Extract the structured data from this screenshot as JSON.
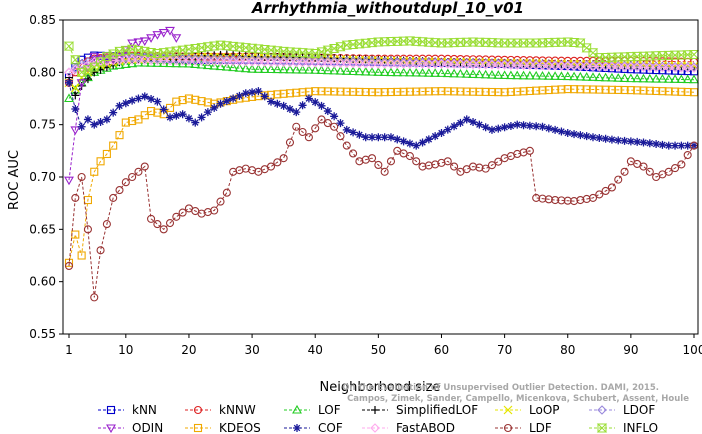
{
  "chart_data": {
    "type": "line",
    "title": "Arrhythmia_withoutdupl_10_v01",
    "xlabel": "Neighborhood size",
    "ylabel": "ROC AUC",
    "xlim": [
      1,
      100
    ],
    "ylim": [
      0.55,
      0.85
    ],
    "x_ticks": [
      1,
      10,
      20,
      30,
      40,
      50,
      60,
      70,
      80,
      90,
      100
    ],
    "y_ticks": [
      0.55,
      0.6,
      0.65,
      0.7,
      0.75,
      0.8,
      0.85
    ],
    "y_tick_labels": [
      "0.55",
      "0.60",
      "0.65",
      "0.70",
      "0.75",
      "0.80",
      "0.85"
    ],
    "grid": false,
    "legend_position": "bottom",
    "watermark": [
      "Campos, Zimek, Sander, Campello, Micenkova, Schubert, Assent, Houle",
      "On the Evaluation of Unsupervised Outlier Detection. DAMI, 2015."
    ],
    "series": [
      {
        "name": "kNN",
        "color": "#0000cc",
        "marker": "square",
        "x_range": [
          1,
          100
        ],
        "keypoints": [
          [
            1,
            0.795
          ],
          [
            2,
            0.805
          ],
          [
            3,
            0.812
          ],
          [
            5,
            0.816
          ],
          [
            10,
            0.815
          ],
          [
            20,
            0.812
          ],
          [
            30,
            0.812
          ],
          [
            40,
            0.811
          ],
          [
            50,
            0.81
          ],
          [
            60,
            0.809
          ],
          [
            70,
            0.808
          ],
          [
            80,
            0.806
          ],
          [
            90,
            0.803
          ],
          [
            100,
            0.801
          ]
        ]
      },
      {
        "name": "kNNW",
        "color": "#dd2222",
        "marker": "circle",
        "x_range": [
          1,
          100
        ],
        "keypoints": [
          [
            1,
            0.79
          ],
          [
            2,
            0.8
          ],
          [
            3,
            0.808
          ],
          [
            5,
            0.813
          ],
          [
            10,
            0.816
          ],
          [
            20,
            0.815
          ],
          [
            30,
            0.815
          ],
          [
            40,
            0.814
          ],
          [
            50,
            0.813
          ],
          [
            60,
            0.813
          ],
          [
            70,
            0.812
          ],
          [
            80,
            0.811
          ],
          [
            90,
            0.811
          ],
          [
            100,
            0.81
          ]
        ]
      },
      {
        "name": "LOF",
        "color": "#22cc22",
        "marker": "triangle-up",
        "x_range": [
          1,
          100
        ],
        "keypoints": [
          [
            1,
            0.775
          ],
          [
            2,
            0.783
          ],
          [
            3,
            0.79
          ],
          [
            5,
            0.8
          ],
          [
            8,
            0.806
          ],
          [
            12,
            0.809
          ],
          [
            20,
            0.808
          ],
          [
            30,
            0.803
          ],
          [
            40,
            0.802
          ],
          [
            50,
            0.8
          ],
          [
            60,
            0.799
          ],
          [
            70,
            0.797
          ],
          [
            80,
            0.796
          ],
          [
            90,
            0.794
          ],
          [
            100,
            0.793
          ]
        ]
      },
      {
        "name": "SimplifiedLOF",
        "color": "#000000",
        "marker": "plus",
        "x_range": [
          1,
          100
        ],
        "keypoints": [
          [
            1,
            0.795
          ],
          [
            2,
            0.778
          ],
          [
            3,
            0.787
          ],
          [
            5,
            0.8
          ],
          [
            10,
            0.812
          ],
          [
            20,
            0.815
          ],
          [
            26,
            0.817
          ],
          [
            30,
            0.815
          ],
          [
            40,
            0.814
          ],
          [
            50,
            0.812
          ],
          [
            60,
            0.81
          ],
          [
            70,
            0.809
          ],
          [
            80,
            0.808
          ],
          [
            90,
            0.807
          ],
          [
            100,
            0.805
          ]
        ]
      },
      {
        "name": "LoOP",
        "color": "#e6e600",
        "marker": "x",
        "x_range": [
          1,
          100
        ],
        "keypoints": [
          [
            1,
            0.79
          ],
          [
            2,
            0.785
          ],
          [
            3,
            0.795
          ],
          [
            5,
            0.805
          ],
          [
            10,
            0.812
          ],
          [
            20,
            0.815
          ],
          [
            30,
            0.814
          ],
          [
            40,
            0.813
          ],
          [
            50,
            0.811
          ],
          [
            60,
            0.81
          ],
          [
            70,
            0.809
          ],
          [
            80,
            0.808
          ],
          [
            90,
            0.807
          ],
          [
            100,
            0.806
          ]
        ]
      },
      {
        "name": "LDOF",
        "color": "#9988dd",
        "marker": "diamond",
        "x_range": [
          1,
          100
        ],
        "keypoints": [
          [
            1,
            0.8
          ],
          [
            3,
            0.808
          ],
          [
            5,
            0.812
          ],
          [
            10,
            0.814
          ],
          [
            20,
            0.813
          ],
          [
            30,
            0.812
          ],
          [
            40,
            0.811
          ],
          [
            50,
            0.81
          ],
          [
            60,
            0.809
          ],
          [
            70,
            0.808
          ],
          [
            80,
            0.807
          ],
          [
            90,
            0.806
          ],
          [
            100,
            0.805
          ]
        ]
      },
      {
        "name": "ODIN",
        "color": "#9922cc",
        "marker": "triangle-down",
        "x_range": [
          1,
          18
        ],
        "keypoints": [
          [
            1,
            0.697
          ],
          [
            2,
            0.745
          ],
          [
            3,
            0.79
          ],
          [
            4,
            0.805
          ],
          [
            5,
            0.815
          ],
          [
            7,
            0.81
          ],
          [
            9,
            0.815
          ],
          [
            11,
            0.828
          ],
          [
            13,
            0.83
          ],
          [
            15,
            0.836
          ],
          [
            16,
            0.838
          ],
          [
            17,
            0.84
          ],
          [
            18,
            0.833
          ]
        ]
      },
      {
        "name": "KDEOS",
        "color": "#f0a800",
        "marker": "square",
        "x_range": [
          1,
          100
        ],
        "keypoints": [
          [
            1,
            0.618
          ],
          [
            2,
            0.645
          ],
          [
            3,
            0.625
          ],
          [
            4,
            0.678
          ],
          [
            5,
            0.705
          ],
          [
            6,
            0.715
          ],
          [
            7,
            0.722
          ],
          [
            8,
            0.73
          ],
          [
            9,
            0.74
          ],
          [
            10,
            0.752
          ],
          [
            12,
            0.755
          ],
          [
            14,
            0.763
          ],
          [
            16,
            0.76
          ],
          [
            18,
            0.772
          ],
          [
            20,
            0.775
          ],
          [
            24,
            0.77
          ],
          [
            28,
            0.775
          ],
          [
            32,
            0.778
          ],
          [
            36,
            0.78
          ],
          [
            40,
            0.782
          ],
          [
            50,
            0.781
          ],
          [
            60,
            0.782
          ],
          [
            70,
            0.781
          ],
          [
            80,
            0.784
          ],
          [
            90,
            0.783
          ],
          [
            100,
            0.781
          ]
        ]
      },
      {
        "name": "COF",
        "color": "#1a1a99",
        "marker": "asterisk",
        "x_range": [
          1,
          100
        ],
        "keypoints": [
          [
            1,
            0.79
          ],
          [
            2,
            0.765
          ],
          [
            3,
            0.748
          ],
          [
            4,
            0.755
          ],
          [
            5,
            0.75
          ],
          [
            7,
            0.755
          ],
          [
            9,
            0.768
          ],
          [
            11,
            0.773
          ],
          [
            13,
            0.777
          ],
          [
            15,
            0.772
          ],
          [
            17,
            0.757
          ],
          [
            19,
            0.76
          ],
          [
            21,
            0.752
          ],
          [
            23,
            0.762
          ],
          [
            25,
            0.77
          ],
          [
            27,
            0.775
          ],
          [
            29,
            0.78
          ],
          [
            31,
            0.782
          ],
          [
            33,
            0.772
          ],
          [
            35,
            0.768
          ],
          [
            37,
            0.762
          ],
          [
            39,
            0.775
          ],
          [
            41,
            0.768
          ],
          [
            43,
            0.758
          ],
          [
            45,
            0.745
          ],
          [
            48,
            0.738
          ],
          [
            52,
            0.738
          ],
          [
            56,
            0.73
          ],
          [
            60,
            0.742
          ],
          [
            64,
            0.755
          ],
          [
            68,
            0.745
          ],
          [
            72,
            0.75
          ],
          [
            76,
            0.748
          ],
          [
            80,
            0.742
          ],
          [
            84,
            0.738
          ],
          [
            88,
            0.735
          ],
          [
            92,
            0.733
          ],
          [
            96,
            0.73
          ],
          [
            100,
            0.73
          ]
        ]
      },
      {
        "name": "FastABOD",
        "color": "#ffaaee",
        "marker": "diamond",
        "x_range": [
          1,
          100
        ],
        "keypoints": [
          [
            1,
            0.8
          ],
          [
            5,
            0.81
          ],
          [
            10,
            0.812
          ],
          [
            20,
            0.811
          ],
          [
            30,
            0.81
          ],
          [
            40,
            0.809
          ],
          [
            50,
            0.808
          ],
          [
            60,
            0.808
          ],
          [
            70,
            0.807
          ],
          [
            80,
            0.806
          ],
          [
            90,
            0.805
          ],
          [
            100,
            0.804
          ]
        ]
      },
      {
        "name": "LDF",
        "color": "#993333",
        "marker": "circle",
        "x_range": [
          1,
          100
        ],
        "keypoints": [
          [
            1,
            0.615
          ],
          [
            2,
            0.68
          ],
          [
            3,
            0.7
          ],
          [
            4,
            0.65
          ],
          [
            5,
            0.585
          ],
          [
            6,
            0.63
          ],
          [
            8,
            0.68
          ],
          [
            10,
            0.695
          ],
          [
            12,
            0.705
          ],
          [
            13,
            0.71
          ],
          [
            14,
            0.66
          ],
          [
            16,
            0.65
          ],
          [
            18,
            0.662
          ],
          [
            20,
            0.67
          ],
          [
            22,
            0.665
          ],
          [
            24,
            0.668
          ],
          [
            26,
            0.685
          ],
          [
            27,
            0.705
          ],
          [
            29,
            0.708
          ],
          [
            31,
            0.705
          ],
          [
            33,
            0.71
          ],
          [
            35,
            0.718
          ],
          [
            37,
            0.748
          ],
          [
            39,
            0.738
          ],
          [
            41,
            0.755
          ],
          [
            43,
            0.748
          ],
          [
            45,
            0.73
          ],
          [
            47,
            0.715
          ],
          [
            49,
            0.718
          ],
          [
            51,
            0.705
          ],
          [
            53,
            0.725
          ],
          [
            55,
            0.72
          ],
          [
            57,
            0.71
          ],
          [
            59,
            0.712
          ],
          [
            61,
            0.715
          ],
          [
            63,
            0.705
          ],
          [
            65,
            0.71
          ],
          [
            67,
            0.708
          ],
          [
            70,
            0.718
          ],
          [
            72,
            0.722
          ],
          [
            74,
            0.725
          ],
          [
            75,
            0.68
          ],
          [
            78,
            0.678
          ],
          [
            81,
            0.677
          ],
          [
            84,
            0.68
          ],
          [
            87,
            0.69
          ],
          [
            89,
            0.705
          ],
          [
            90,
            0.715
          ],
          [
            92,
            0.71
          ],
          [
            94,
            0.7
          ],
          [
            96,
            0.705
          ],
          [
            98,
            0.712
          ],
          [
            100,
            0.73
          ]
        ]
      },
      {
        "name": "INFLO",
        "color": "#99dd33",
        "marker": "hourglass",
        "x_range": [
          1,
          100
        ],
        "keypoints": [
          [
            1,
            0.825
          ],
          [
            2,
            0.812
          ],
          [
            3,
            0.8
          ],
          [
            5,
            0.805
          ],
          [
            7,
            0.815
          ],
          [
            9,
            0.82
          ],
          [
            11,
            0.822
          ],
          [
            13,
            0.82
          ],
          [
            15,
            0.818
          ],
          [
            20,
            0.822
          ],
          [
            25,
            0.826
          ],
          [
            30,
            0.823
          ],
          [
            35,
            0.82
          ],
          [
            40,
            0.818
          ],
          [
            45,
            0.826
          ],
          [
            50,
            0.829
          ],
          [
            55,
            0.83
          ],
          [
            60,
            0.828
          ],
          [
            65,
            0.829
          ],
          [
            70,
            0.828
          ],
          [
            75,
            0.828
          ],
          [
            80,
            0.829
          ],
          [
            82,
            0.828
          ],
          [
            85,
            0.814
          ],
          [
            90,
            0.815
          ],
          [
            95,
            0.816
          ],
          [
            100,
            0.817
          ]
        ]
      }
    ]
  }
}
